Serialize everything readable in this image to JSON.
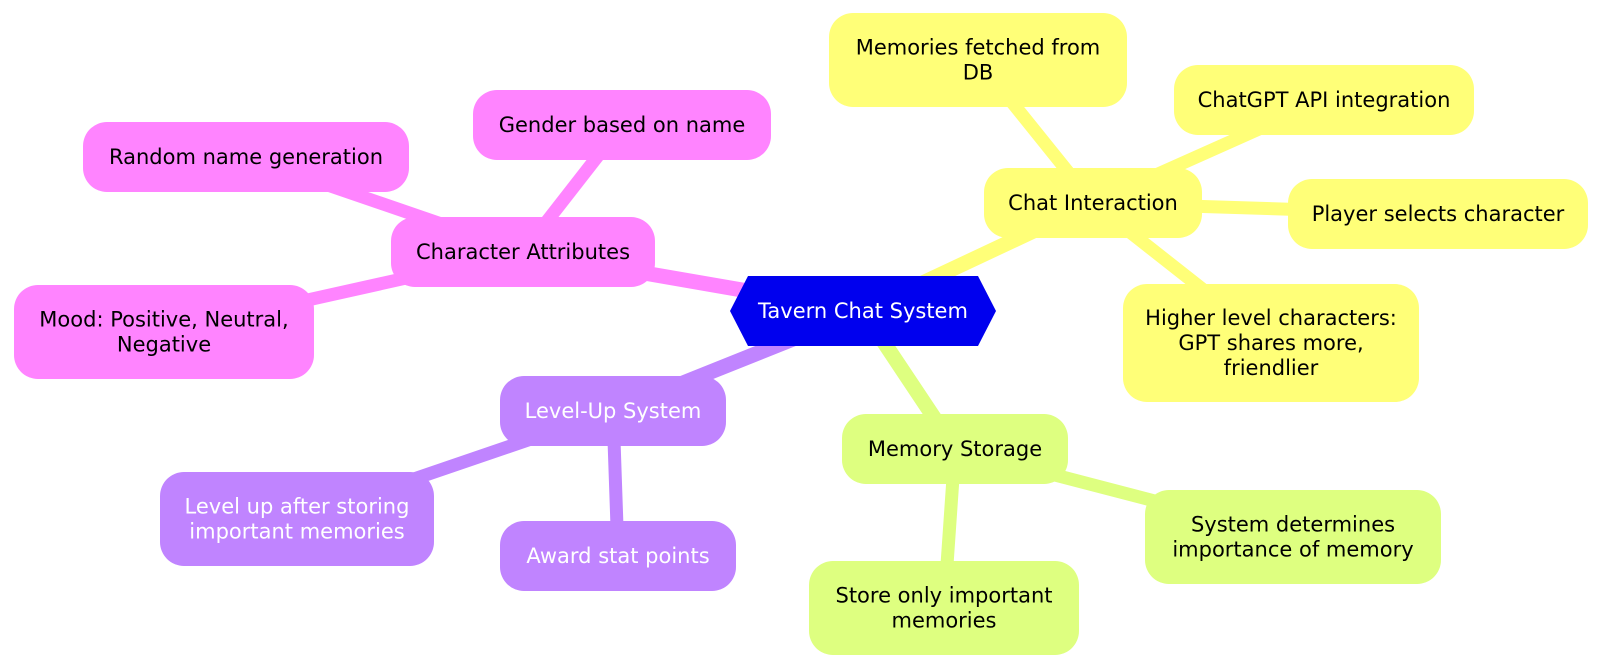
{
  "root": {
    "label": "Tavern Chat System",
    "color": "#0000ee",
    "text_color": "#ffffff"
  },
  "branches": [
    {
      "id": "chat",
      "label": "Chat Interaction",
      "color": "#ffff78",
      "text_color": "#000000",
      "children": [
        {
          "id": "chat-memories-fetched",
          "lines": [
            "Memories fetched from",
            "DB"
          ]
        },
        {
          "id": "chat-chatgpt-api",
          "lines": [
            "ChatGPT API integration"
          ]
        },
        {
          "id": "chat-player-selects",
          "lines": [
            "Player selects character"
          ]
        },
        {
          "id": "chat-higher-level",
          "lines": [
            "Higher level characters:",
            "GPT shares more,",
            "friendlier"
          ]
        }
      ]
    },
    {
      "id": "memory",
      "label": "Memory Storage",
      "color": "#deff80",
      "text_color": "#000000",
      "children": [
        {
          "id": "memory-system-determines",
          "lines": [
            "System determines",
            "importance of memory"
          ]
        },
        {
          "id": "memory-store-only",
          "lines": [
            "Store only important",
            "memories"
          ]
        }
      ]
    },
    {
      "id": "levelup",
      "label": "Level-Up System",
      "color": "#c084ff",
      "text_color": "#ffffff",
      "children": [
        {
          "id": "levelup-award-stat",
          "lines": [
            "Award stat points"
          ]
        },
        {
          "id": "levelup-after-storing",
          "lines": [
            "Level up after storing",
            "important memories"
          ]
        }
      ]
    },
    {
      "id": "attributes",
      "label": "Character Attributes",
      "color": "#ff84ff",
      "text_color": "#000000",
      "children": [
        {
          "id": "attributes-mood",
          "lines": [
            "Mood: Positive, Neutral,",
            "Negative"
          ]
        },
        {
          "id": "attributes-random-name",
          "lines": [
            "Random name generation"
          ]
        },
        {
          "id": "attributes-gender",
          "lines": [
            "Gender based on name"
          ]
        }
      ]
    }
  ]
}
